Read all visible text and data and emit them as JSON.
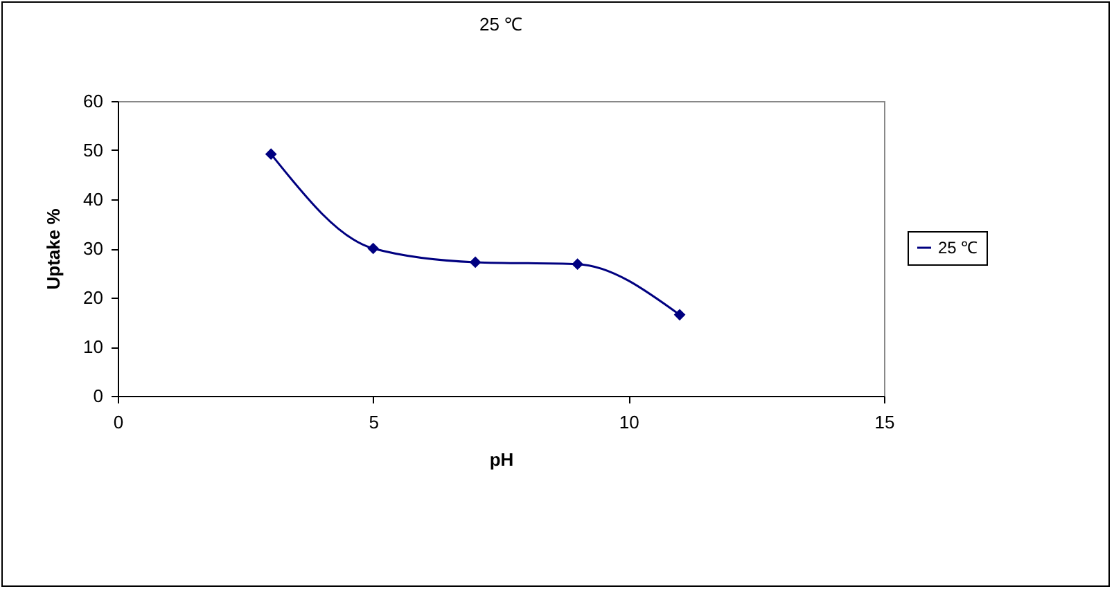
{
  "chart_data": {
    "type": "line",
    "title": "25 ℃",
    "xlabel": "pH",
    "ylabel": "Uptake %",
    "x": [
      3,
      5,
      7,
      9,
      11
    ],
    "series": [
      {
        "name": "25 ℃",
        "color": "#000080",
        "values": [
          49.2,
          30,
          27.2,
          26.8,
          16.5
        ]
      }
    ],
    "xlim": [
      0,
      15
    ],
    "xticks": [
      0,
      5,
      10,
      15
    ],
    "ylim": [
      0,
      60
    ],
    "yticks": [
      0,
      10,
      20,
      30,
      40,
      50,
      60
    ],
    "grid": false,
    "legend": "right",
    "marker": "diamond",
    "line_style": "solid"
  }
}
